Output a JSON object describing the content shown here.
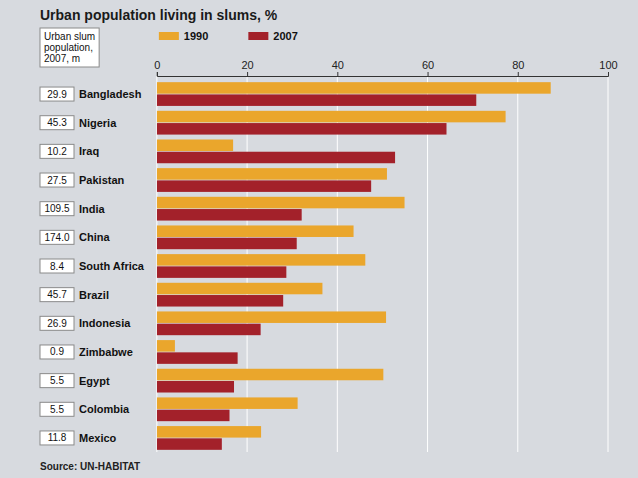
{
  "chart_data": {
    "type": "bar",
    "title": "Urban population living in slums, %",
    "orientation": "horizontal",
    "grid": true,
    "legend": "top",
    "categories": [
      "Bangladesh",
      "Nigeria",
      "Iraq",
      "Pakistan",
      "India",
      "China",
      "South Africa",
      "Brazil",
      "Indonesia",
      "Zimbabwe",
      "Egypt",
      "Colombia",
      "Mexico"
    ],
    "series": [
      {
        "name": "1990",
        "color": "#eaa62c",
        "values": [
          87.3,
          77.3,
          16.9,
          51.0,
          54.9,
          43.6,
          46.2,
          36.7,
          50.8,
          4.0,
          50.2,
          31.2,
          23.1
        ]
      },
      {
        "name": "2007",
        "color": "#a3212a",
        "values": [
          70.8,
          64.2,
          52.8,
          47.5,
          32.1,
          31.0,
          28.7,
          28.0,
          23.0,
          17.9,
          17.1,
          16.1,
          14.4
        ]
      }
    ],
    "xlim": [
      0,
      100
    ],
    "xticks": [
      0,
      20,
      40,
      60,
      80,
      100
    ],
    "slum_population_title": "Urban slum population, 2007, m",
    "slum_population": [
      29.9,
      45.3,
      10.2,
      27.5,
      109.5,
      174.0,
      8.4,
      45.7,
      26.9,
      0.9,
      5.5,
      5.5,
      11.8
    ],
    "source": "Source: UN-HABITAT"
  }
}
